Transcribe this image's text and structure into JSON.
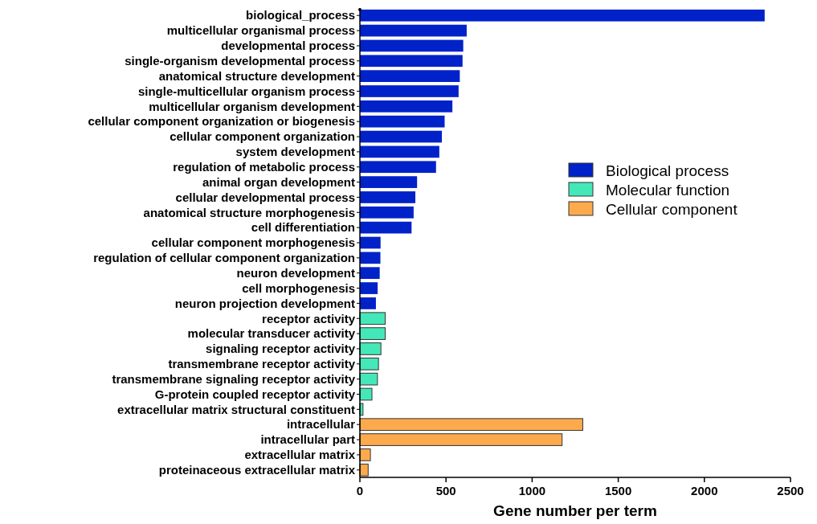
{
  "chart_data": {
    "type": "bar",
    "orientation": "horizontal",
    "xlabel": "Gene number per term",
    "categories": [
      "biological_process",
      "multicellular organismal process",
      "developmental process",
      "single-organism developmental process",
      "anatomical structure development",
      "single-multicellular organism process",
      "multicellular organism development",
      "cellular component organization or biogenesis",
      "cellular component organization",
      "system development",
      "regulation of metabolic process",
      "animal organ development",
      "cellular developmental process",
      "anatomical structure morphogenesis",
      "cell differentiation",
      "cellular component morphogenesis",
      "regulation of cellular component organization",
      "neuron development",
      "cell morphogenesis",
      "neuron projection development",
      "receptor activity",
      "molecular transducer activity",
      "signaling receptor activity",
      "transmembrane receptor activity",
      "transmembrane signaling receptor activity",
      "G-protein coupled receptor activity",
      "extracellular matrix structural constituent",
      "intracellular",
      "intracellular part",
      "extracellular matrix",
      "proteinaceous extracellular matrix"
    ],
    "series": [
      {
        "name": "Biological process",
        "color": "#0022c8",
        "values": [
          2350,
          620,
          600,
          596,
          580,
          573,
          537,
          492,
          476,
          461,
          442,
          332,
          322,
          312,
          300,
          120,
          119,
          115,
          103,
          93,
          null,
          null,
          null,
          null,
          null,
          null,
          null,
          null,
          null,
          null,
          null
        ]
      },
      {
        "name": "Molecular function",
        "color": "#44e8b8",
        "values": [
          null,
          null,
          null,
          null,
          null,
          null,
          null,
          null,
          null,
          null,
          null,
          null,
          null,
          null,
          null,
          null,
          null,
          null,
          null,
          null,
          147,
          147,
          122,
          108,
          102,
          70,
          18,
          null,
          null,
          null,
          null
        ]
      },
      {
        "name": "Cellular component",
        "color": "#fcaa4c",
        "values": [
          null,
          null,
          null,
          null,
          null,
          null,
          null,
          null,
          null,
          null,
          null,
          null,
          null,
          null,
          null,
          null,
          null,
          null,
          null,
          null,
          null,
          null,
          null,
          null,
          null,
          null,
          null,
          1294,
          1174,
          61,
          48
        ]
      }
    ],
    "xlim": [
      0,
      2500
    ],
    "xticks": [
      0,
      500,
      1000,
      1500,
      2000,
      2500
    ],
    "legend": "right",
    "grid": false
  }
}
